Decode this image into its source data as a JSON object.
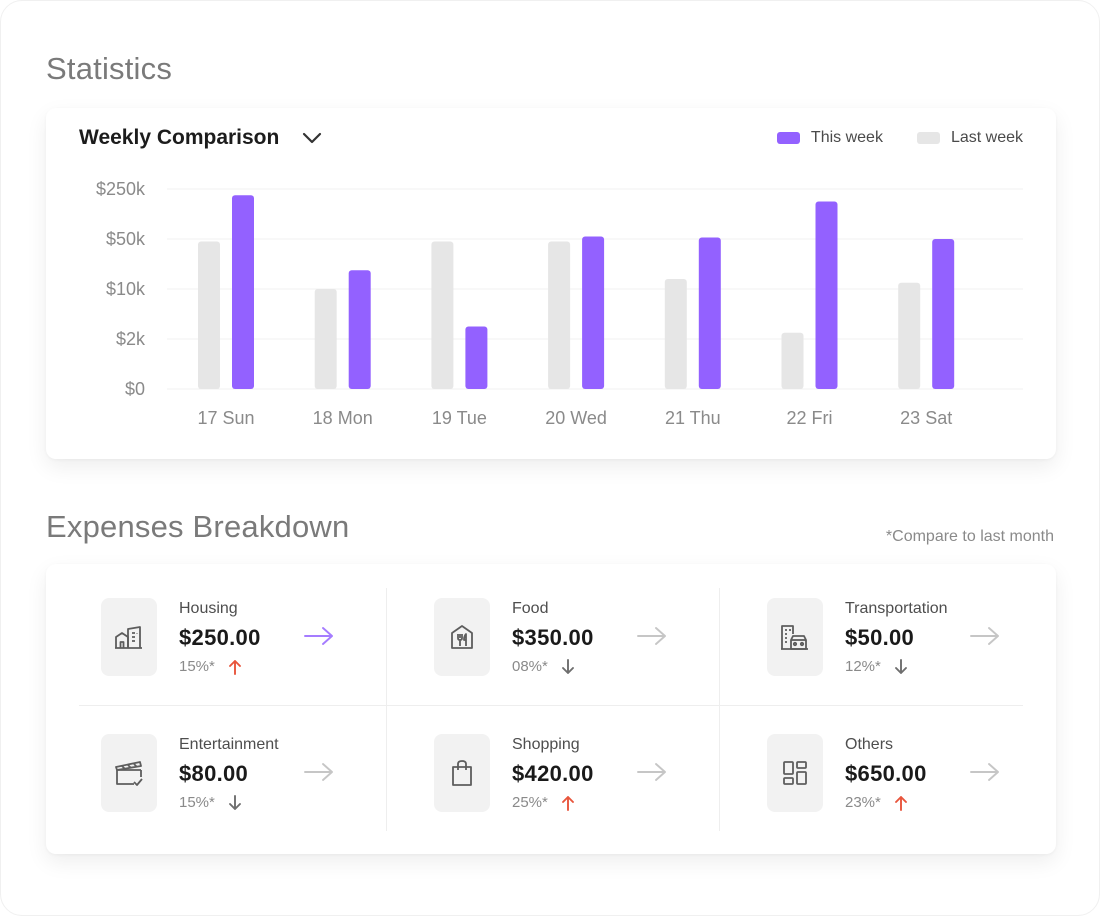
{
  "colors": {
    "this_week": "#9361ff",
    "last_week": "#e6e6e6",
    "up": "#e8553c",
    "down": "#6e6e6e",
    "arrow_active": "#a57cff",
    "arrow": "#c6c6c6"
  },
  "statistics": {
    "title": "Statistics"
  },
  "chart": {
    "title": "Weekly Comparison",
    "dropdown_icon": "chevron-down-icon",
    "legend": {
      "this_week": "This week",
      "last_week": "Last week"
    }
  },
  "chart_data": {
    "type": "bar",
    "title": "Weekly Comparison",
    "xlabel": "",
    "ylabel": "",
    "y_scale": "non-linear (categorical ticks)",
    "y_ticks": [
      "$250k",
      "$50k",
      "$10k",
      "$2k",
      "$0"
    ],
    "y_tick_values": [
      250000,
      50000,
      10000,
      2000,
      0
    ],
    "categories": [
      "17 Sun",
      "18 Mon",
      "19 Tue",
      "20 Wed",
      "21 Thu",
      "22 Fri",
      "23 Sat"
    ],
    "series": [
      {
        "name": "Last week",
        "values": [
          48000,
          10000,
          48000,
          48000,
          18000,
          3000,
          15000
        ]
      },
      {
        "name": "This week",
        "values": [
          225000,
          25000,
          4000,
          60000,
          56000,
          200000,
          50000
        ]
      }
    ],
    "grid": true,
    "legend": "top-right"
  },
  "expenses": {
    "title": "Expenses Breakdown",
    "note": "*Compare to last month",
    "items": [
      {
        "label": "Housing",
        "amount": "$250.00",
        "pct": "15%*",
        "trend": "up",
        "icon": "housing-icon",
        "active": true
      },
      {
        "label": "Food",
        "amount": "$350.00",
        "pct": "08%*",
        "trend": "down",
        "icon": "food-icon",
        "active": false
      },
      {
        "label": "Transportation",
        "amount": "$50.00",
        "pct": "12%*",
        "trend": "down",
        "icon": "transportation-icon",
        "active": false
      },
      {
        "label": "Entertainment",
        "amount": "$80.00",
        "pct": "15%*",
        "trend": "down",
        "icon": "entertainment-icon",
        "active": false
      },
      {
        "label": "Shopping",
        "amount": "$420.00",
        "pct": "25%*",
        "trend": "up",
        "icon": "shopping-icon",
        "active": false
      },
      {
        "label": "Others",
        "amount": "$650.00",
        "pct": "23%*",
        "trend": "up",
        "icon": "others-icon",
        "active": false
      }
    ]
  }
}
